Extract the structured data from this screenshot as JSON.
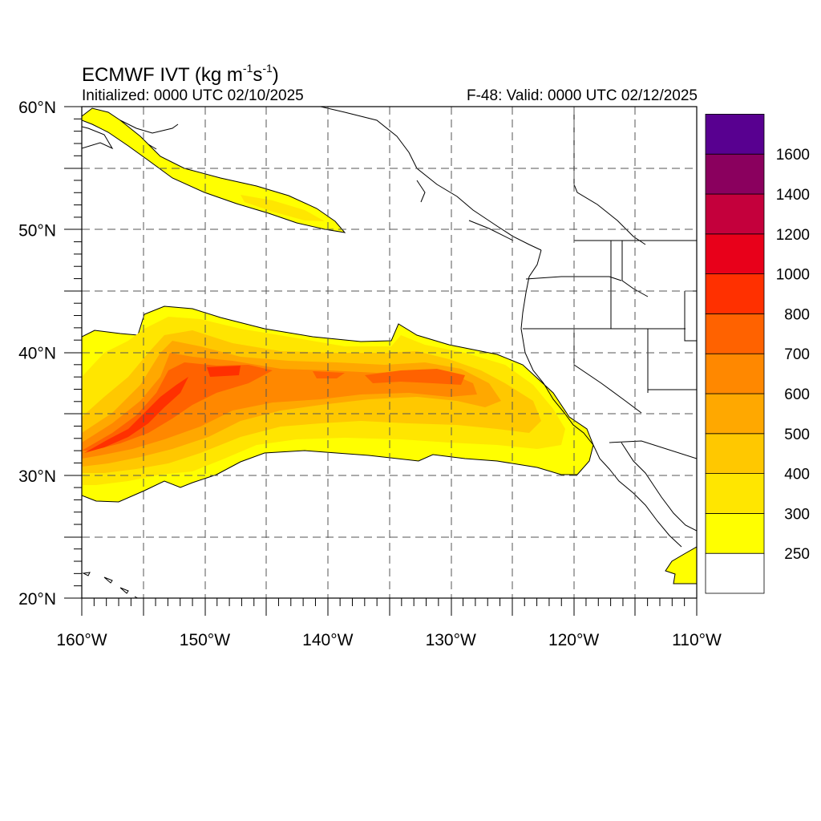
{
  "title": {
    "prefix": "ECMWF IVT (kg m",
    "exp1": "-1",
    "mid": "s",
    "exp2": "-1",
    "suffix": ")"
  },
  "initialized": "Initialized: 0000 UTC 02/10/2025",
  "valid": "F-48: Valid: 0000 UTC 02/12/2025",
  "map": {
    "lon_range": [
      -160,
      -110
    ],
    "lat_range": [
      20,
      60
    ],
    "grid_lon_step": 5,
    "grid_lat_step": 5,
    "grid_style": "dashed",
    "lon_tick_labels": [
      {
        "lon": -160,
        "text": "160°W"
      },
      {
        "lon": -150,
        "text": "150°W"
      },
      {
        "lon": -140,
        "text": "140°W"
      },
      {
        "lon": -130,
        "text": "130°W"
      },
      {
        "lon": -120,
        "text": "120°W"
      },
      {
        "lon": -110,
        "text": "110°W"
      }
    ],
    "lat_tick_labels": [
      {
        "lat": 60,
        "text": "60°N"
      },
      {
        "lat": 50,
        "text": "50°N"
      },
      {
        "lat": 40,
        "text": "40°N"
      },
      {
        "lat": 30,
        "text": "30°N"
      },
      {
        "lat": 20,
        "text": "20°N"
      }
    ]
  },
  "colorbar": {
    "levels": [
      {
        "color": "#ffffff",
        "label": "250"
      },
      {
        "color": "#ffff00",
        "label": "300"
      },
      {
        "color": "#ffe600",
        "label": "400"
      },
      {
        "color": "#ffc800",
        "label": "500"
      },
      {
        "color": "#ffa800",
        "label": "600"
      },
      {
        "color": "#ff8800",
        "label": "700"
      },
      {
        "color": "#ff6200",
        "label": "800"
      },
      {
        "color": "#ff3000",
        "label": "1000"
      },
      {
        "color": "#e8001a",
        "label": "1200"
      },
      {
        "color": "#c4003c",
        "label": "1400"
      },
      {
        "color": "#8a005e",
        "label": "1600"
      },
      {
        "color": "#580090",
        "label": ""
      }
    ]
  }
}
